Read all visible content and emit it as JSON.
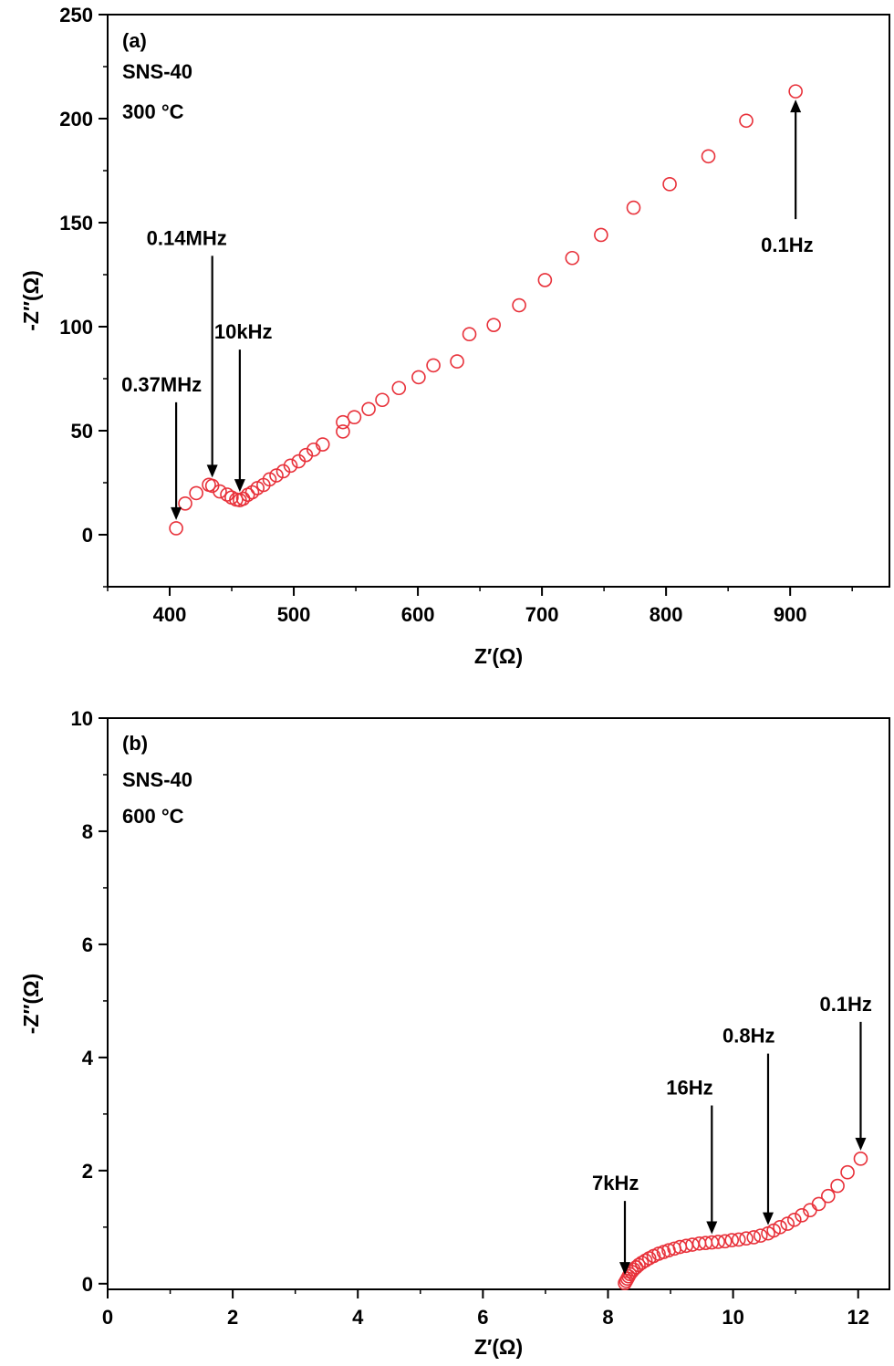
{
  "figure_caption": "",
  "chart_data": [
    {
      "panel": "(a)",
      "type": "scatter",
      "sample": "SNS-40",
      "temperature": "300 °C",
      "title": "",
      "xlabel": "Z′(Ω)",
      "ylabel": "-Z″(Ω)",
      "xlim": [
        350,
        980
      ],
      "ylim": [
        -25,
        250
      ],
      "xticks": [
        400,
        500,
        600,
        700,
        800,
        900
      ],
      "yticks": [
        0,
        50,
        100,
        150,
        200,
        250
      ],
      "grid": false,
      "marker_color": "#e8313a",
      "series": [
        {
          "x": [
            405.2,
            412.5,
            421.4,
            431.6,
            434.3,
            440.4,
            446.3,
            449.9,
            453.6,
            456.5,
            459.2,
            463.0,
            466.5,
            470.7,
            475.6,
            480.5,
            486.0,
            491.5,
            497.4,
            503.9,
            509.8,
            516.0,
            523.3,
            539.6,
            539.6,
            548.8,
            560.3,
            571.3,
            584.7,
            600.6,
            612.5,
            631.6,
            641.5,
            661.1,
            681.6,
            702.4,
            724.4,
            747.6,
            773.8,
            802.9,
            834.1,
            864.6,
            904.4
          ],
          "y": [
            3.1,
            15.0,
            20.0,
            24.0,
            23.5,
            20.8,
            19.3,
            17.9,
            16.9,
            16.6,
            17.3,
            19.2,
            20.4,
            22.4,
            23.9,
            26.6,
            28.5,
            30.5,
            33.2,
            35.3,
            38.3,
            40.9,
            43.4,
            49.6,
            54.1,
            56.5,
            60.4,
            64.8,
            70.5,
            75.7,
            81.4,
            83.3,
            96.4,
            100.8,
            110.3,
            122.4,
            133.0,
            144.1,
            157.2,
            168.5,
            181.9,
            199.0,
            213.1
          ]
        }
      ],
      "annotations": [
        {
          "text": "0.37MHz",
          "x": 405.2,
          "y": 3.1,
          "arrow": "down"
        },
        {
          "text": "0.14MHz",
          "x": 434.3,
          "y": 23.5,
          "arrow": "down"
        },
        {
          "text": "10kHz",
          "x": 456.5,
          "y": 16.6,
          "arrow": "down"
        },
        {
          "text": "0.1Hz",
          "x": 904.4,
          "y": 213.1,
          "arrow": "up"
        }
      ]
    },
    {
      "panel": "(b)",
      "type": "scatter",
      "sample": "SNS-40",
      "temperature": "600 °C",
      "title": "",
      "xlabel": "Z′(Ω)",
      "ylabel": "-Z″(Ω)",
      "xlim": [
        0,
        12.5
      ],
      "ylim": [
        -0.1,
        10
      ],
      "xticks": [
        0,
        2,
        4,
        6,
        8,
        10,
        12
      ],
      "yticks": [
        0,
        2,
        4,
        6,
        8,
        10
      ],
      "grid": false,
      "marker_color": "#e8313a",
      "series": [
        {
          "x": [
            8.27,
            8.29,
            8.31,
            8.33,
            8.35,
            8.38,
            8.41,
            8.45,
            8.49,
            8.54,
            8.6,
            8.66,
            8.73,
            8.81,
            8.89,
            8.97,
            9.06,
            9.15,
            9.25,
            9.35,
            9.46,
            9.56,
            9.66,
            9.76,
            9.87,
            9.98,
            10.09,
            10.21,
            10.33,
            10.44,
            10.56,
            10.65,
            10.75,
            10.87,
            10.98,
            11.1,
            11.23,
            11.37,
            11.52,
            11.67,
            11.83,
            12.04
          ],
          "y": [
            0.01,
            0.05,
            0.09,
            0.13,
            0.17,
            0.21,
            0.25,
            0.29,
            0.33,
            0.37,
            0.41,
            0.45,
            0.49,
            0.53,
            0.56,
            0.59,
            0.62,
            0.65,
            0.67,
            0.69,
            0.71,
            0.72,
            0.73,
            0.74,
            0.75,
            0.77,
            0.78,
            0.8,
            0.82,
            0.85,
            0.89,
            0.94,
            1.0,
            1.06,
            1.13,
            1.21,
            1.3,
            1.41,
            1.55,
            1.73,
            1.97,
            2.21
          ]
        }
      ],
      "annotations": [
        {
          "text": "7kHz",
          "x": 8.27,
          "y": 0.01,
          "arrow": "down"
        },
        {
          "text": "16Hz",
          "x": 9.66,
          "y": 0.73,
          "arrow": "down"
        },
        {
          "text": "0.8Hz",
          "x": 10.56,
          "y": 0.89,
          "arrow": "down"
        },
        {
          "text": "0.1Hz",
          "x": 12.04,
          "y": 2.21,
          "arrow": "down"
        }
      ]
    }
  ]
}
